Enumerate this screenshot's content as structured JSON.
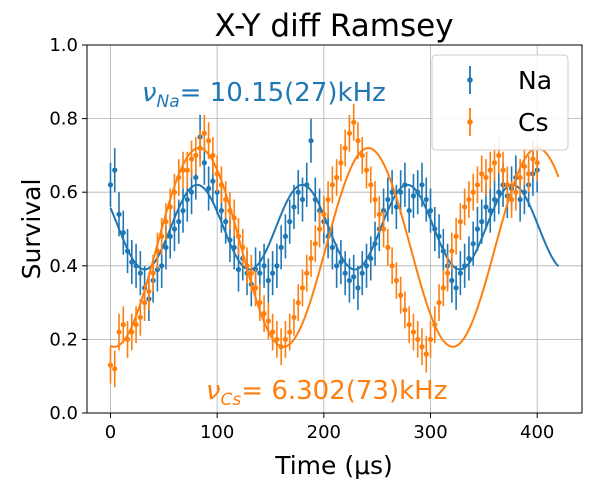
{
  "chart_data": {
    "type": "scatter",
    "title": "X-Y diff Ramsey",
    "xlabel": "Time (μs)",
    "ylabel": "Survival",
    "xlim": [
      -22,
      442
    ],
    "ylim": [
      0.0,
      1.0
    ],
    "xticks": [
      0,
      100,
      200,
      300,
      400
    ],
    "yticks": [
      0.0,
      0.2,
      0.4,
      0.6,
      0.8,
      1.0
    ],
    "xtick_labels": [
      "0",
      "100",
      "200",
      "300",
      "400"
    ],
    "ytick_labels": [
      "0.0",
      "0.2",
      "0.4",
      "0.6",
      "0.8",
      "1.0"
    ],
    "grid": true,
    "legend_position": "top-right",
    "annotations": [
      {
        "series": "Na",
        "text": "νNa = 10.15(27)kHz",
        "symbol": "ν",
        "subscript": "Na",
        "value": "= 10.15(27)kHz"
      },
      {
        "series": "Cs",
        "text": "νCs = 6.302(73)kHz",
        "symbol": "ν",
        "subscript": "Cs",
        "value": "= 6.302(73)kHz"
      }
    ],
    "series": [
      {
        "name": "Na",
        "color": "#1f77b4",
        "x": [
          0,
          4,
          8,
          12,
          16,
          20,
          24,
          28,
          32,
          36,
          40,
          44,
          48,
          52,
          56,
          60,
          64,
          68,
          72,
          76,
          80,
          84,
          88,
          92,
          96,
          100,
          104,
          108,
          112,
          116,
          120,
          124,
          128,
          132,
          136,
          140,
          144,
          148,
          152,
          156,
          160,
          164,
          168,
          172,
          176,
          180,
          184,
          188,
          192,
          196,
          200,
          204,
          208,
          212,
          216,
          220,
          224,
          228,
          232,
          236,
          240,
          244,
          248,
          252,
          256,
          260,
          264,
          268,
          272,
          276,
          280,
          284,
          288,
          292,
          296,
          300,
          304,
          308,
          312,
          316,
          320,
          324,
          328,
          332,
          336,
          340,
          344,
          348,
          352,
          356,
          360,
          364,
          368,
          372,
          376,
          380,
          384,
          388,
          392,
          396,
          400
        ],
        "y": [
          0.62,
          0.66,
          0.54,
          0.49,
          0.44,
          0.41,
          0.4,
          0.38,
          0.34,
          0.31,
          0.36,
          0.39,
          0.4,
          0.45,
          0.48,
          0.5,
          0.52,
          0.55,
          0.58,
          0.6,
          0.64,
          0.75,
          0.68,
          0.61,
          0.63,
          0.6,
          0.55,
          0.52,
          0.47,
          0.45,
          0.39,
          0.42,
          0.38,
          0.35,
          0.39,
          0.38,
          0.4,
          0.36,
          0.38,
          0.4,
          0.45,
          0.48,
          0.52,
          0.56,
          0.6,
          0.58,
          0.62,
          0.74,
          0.58,
          0.55,
          0.52,
          0.48,
          0.45,
          0.4,
          0.41,
          0.38,
          0.36,
          0.37,
          0.34,
          0.38,
          0.4,
          0.42,
          0.46,
          0.5,
          0.55,
          0.58,
          0.6,
          0.56,
          0.6,
          0.62,
          0.55,
          0.59,
          0.6,
          0.62,
          0.58,
          0.55,
          0.5,
          0.48,
          0.44,
          0.4,
          0.36,
          0.34,
          0.38,
          0.4,
          0.42,
          0.46,
          0.5,
          0.52,
          0.56,
          0.55,
          0.58,
          0.6,
          0.62,
          0.59,
          0.61,
          0.64,
          0.58,
          0.6,
          0.62,
          0.65,
          0.66
        ],
        "yerr": 0.06,
        "fit": {
          "offset": 0.505,
          "amplitude": 0.115,
          "frequency_kHz": 10.15,
          "phase_rad": 1.1,
          "x_range": [
            0,
            420
          ]
        }
      },
      {
        "name": "Cs",
        "color": "#ff7f0e",
        "x": [
          0,
          4,
          8,
          12,
          16,
          20,
          24,
          28,
          32,
          36,
          40,
          44,
          48,
          52,
          56,
          60,
          64,
          68,
          72,
          76,
          80,
          84,
          88,
          92,
          96,
          100,
          104,
          108,
          112,
          116,
          120,
          124,
          128,
          132,
          136,
          140,
          144,
          148,
          152,
          156,
          160,
          164,
          168,
          172,
          176,
          180,
          184,
          188,
          192,
          196,
          200,
          204,
          208,
          212,
          216,
          220,
          224,
          228,
          232,
          236,
          240,
          244,
          248,
          252,
          256,
          260,
          264,
          268,
          272,
          276,
          280,
          284,
          288,
          292,
          296,
          300,
          304,
          308,
          312,
          316,
          320,
          324,
          328,
          332,
          336,
          340,
          344,
          348,
          352,
          356,
          360,
          364,
          368,
          372,
          376,
          380,
          384,
          388,
          392,
          396,
          400
        ],
        "y": [
          0.13,
          0.12,
          0.22,
          0.24,
          0.2,
          0.22,
          0.24,
          0.26,
          0.3,
          0.33,
          0.38,
          0.44,
          0.48,
          0.52,
          0.56,
          0.6,
          0.64,
          0.66,
          0.66,
          0.69,
          0.7,
          0.72,
          0.76,
          0.74,
          0.7,
          0.65,
          0.62,
          0.58,
          0.55,
          0.53,
          0.48,
          0.45,
          0.4,
          0.38,
          0.34,
          0.3,
          0.27,
          0.25,
          0.22,
          0.2,
          0.18,
          0.2,
          0.22,
          0.26,
          0.3,
          0.34,
          0.38,
          0.42,
          0.46,
          0.5,
          0.54,
          0.58,
          0.62,
          0.64,
          0.68,
          0.72,
          0.76,
          0.79,
          0.74,
          0.7,
          0.66,
          0.62,
          0.58,
          0.54,
          0.5,
          0.45,
          0.4,
          0.36,
          0.32,
          0.28,
          0.24,
          0.22,
          0.2,
          0.18,
          0.16,
          0.2,
          0.24,
          0.3,
          0.34,
          0.38,
          0.44,
          0.48,
          0.52,
          0.56,
          0.58,
          0.6,
          0.62,
          0.65,
          0.64,
          0.66,
          0.68,
          0.7,
          0.66,
          0.62,
          0.58,
          0.6,
          0.64,
          0.67,
          0.65,
          0.69,
          0.68
        ],
        "yerr": 0.05,
        "fit": {
          "offset": 0.45,
          "amplitude": 0.27,
          "frequency_kHz": 6.302,
          "phase_rad": 3.0,
          "x_range": [
            0,
            420
          ]
        }
      }
    ]
  }
}
